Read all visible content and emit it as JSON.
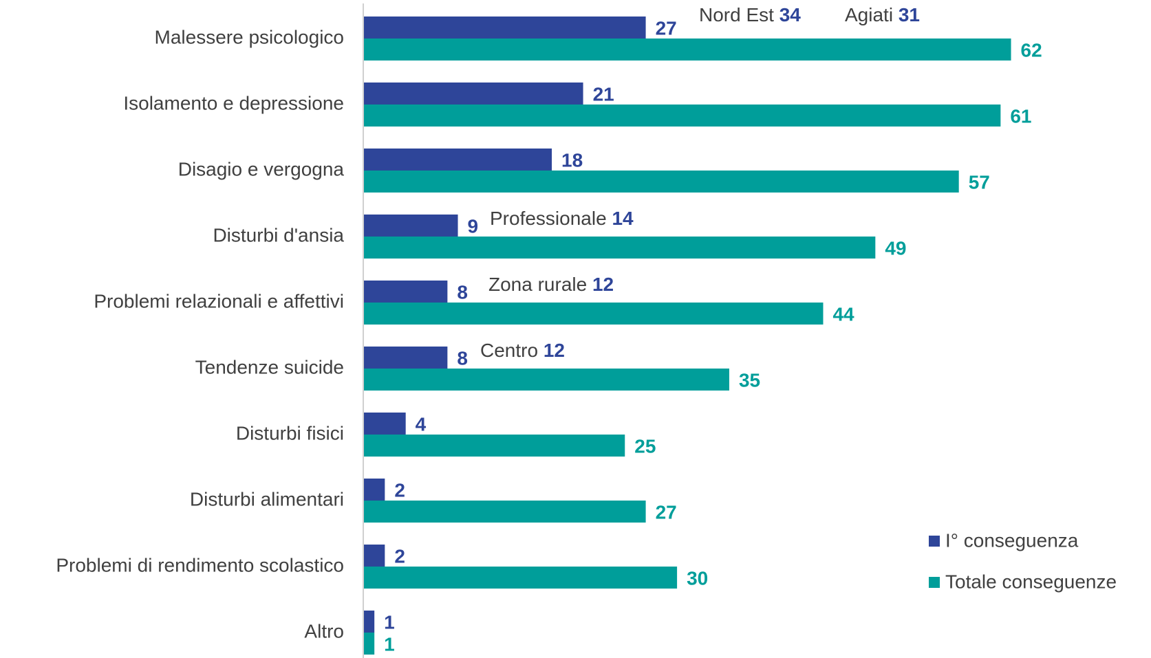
{
  "chart_data": {
    "type": "bar",
    "orientation": "horizontal",
    "categories": [
      "Malessere psicologico",
      "Isolamento e depressione",
      "Disagio e vergogna",
      "Disturbi d'ansia",
      "Problemi relazionali e affettivi",
      "Tendenze suicide",
      "Disturbi fisici",
      "Disturbi alimentari",
      "Problemi di rendimento scolastico",
      "Altro"
    ],
    "series": [
      {
        "name": "I° conseguenza",
        "color": "#2e4599",
        "values": [
          27,
          21,
          18,
          9,
          8,
          8,
          4,
          2,
          2,
          1
        ]
      },
      {
        "name": "Totale conseguenze",
        "color": "#009e9a",
        "values": [
          62,
          61,
          57,
          49,
          44,
          35,
          25,
          27,
          30,
          1
        ]
      }
    ],
    "annotations": [
      {
        "label": "Nord Est",
        "value": 34
      },
      {
        "label": "Agiati",
        "value": 31
      },
      {
        "label": "Professionale",
        "value": 14
      },
      {
        "label": "Zona rurale",
        "value": 12
      },
      {
        "label": "Centro",
        "value": 12
      }
    ],
    "legend": "right"
  }
}
